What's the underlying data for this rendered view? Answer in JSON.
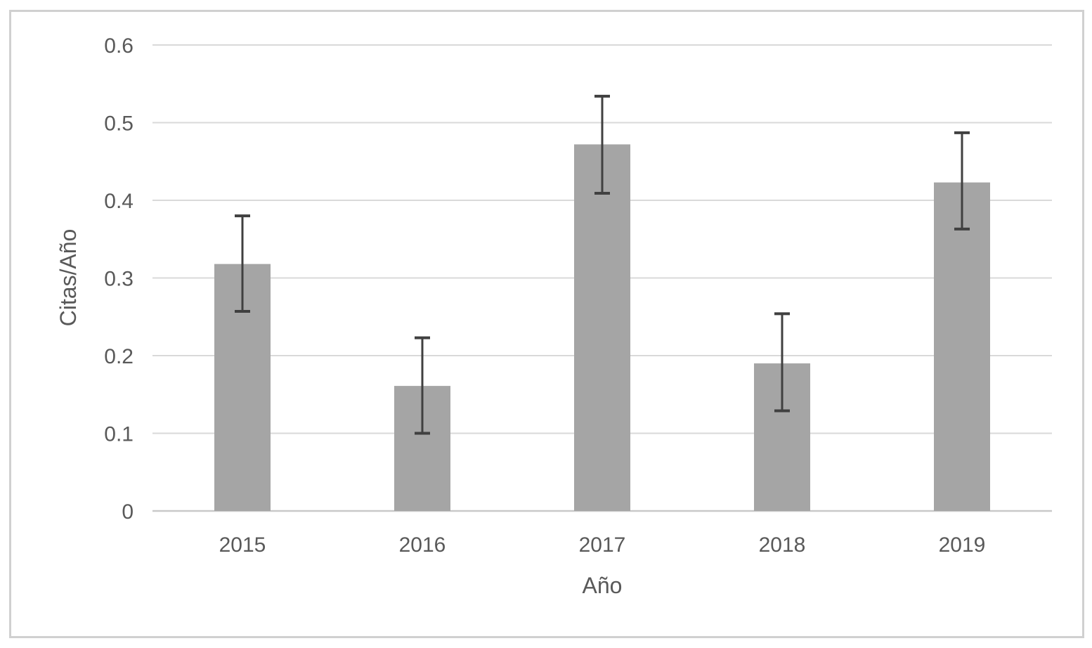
{
  "chart_data": {
    "type": "bar",
    "title": "",
    "xlabel": "Año",
    "ylabel": "Citas/Año",
    "categories": [
      "2015",
      "2016",
      "2017",
      "2018",
      "2019"
    ],
    "values": [
      0.318,
      0.161,
      0.472,
      0.19,
      0.423
    ],
    "error_plus": [
      0.062,
      0.062,
      0.062,
      0.064,
      0.064
    ],
    "error_minus": [
      0.061,
      0.061,
      0.063,
      0.061,
      0.06
    ],
    "ylim": [
      0,
      0.6
    ],
    "ytick_labels": [
      "0",
      "0.1",
      "0.2",
      "0.3",
      "0.4",
      "0.5",
      "0.6"
    ],
    "grid": true,
    "legend": "none",
    "colors": {
      "bar": "#a5a5a5",
      "error_bar": "#404040",
      "gridline": "#d9d9d9",
      "axis_line": "#c9c9c9",
      "label_text": "#595959",
      "frame_border": "#d0d0d0",
      "background": "#ffffff"
    }
  }
}
